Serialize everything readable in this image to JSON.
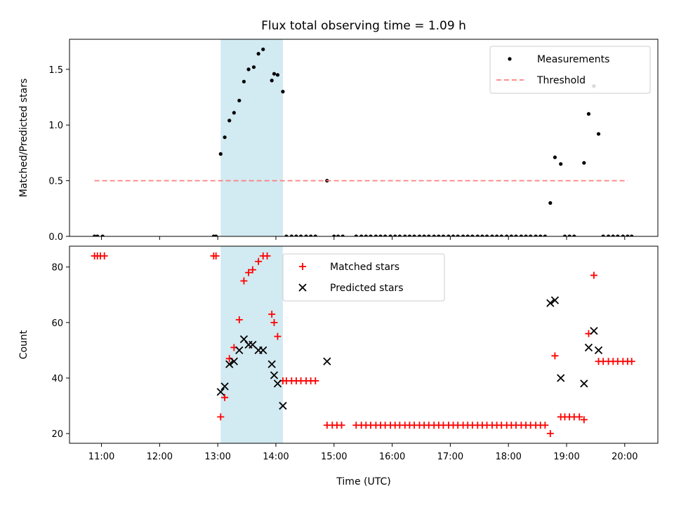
{
  "chart_data": {
    "title": "Flux total observing time = 1.09 h",
    "xlabel": "Time (UTC)",
    "x_tick_labels": [
      "11:00",
      "12:00",
      "13:00",
      "14:00",
      "15:00",
      "16:00",
      "17:00",
      "18:00",
      "19:00",
      "20:00"
    ],
    "x_ticks_hours": [
      11,
      12,
      13,
      14,
      15,
      16,
      17,
      18,
      19,
      20
    ],
    "xlim_hours": [
      10.45,
      20.57
    ],
    "shaded_span_hours": [
      13.05,
      14.12
    ],
    "shade_color": "#add8e6",
    "panels": [
      {
        "type": "scatter",
        "ylabel": "Matched/Predicted stars",
        "ylim": [
          0,
          1.77
        ],
        "y_ticks": [
          0.0,
          0.5,
          1.0,
          1.5
        ],
        "y_tick_labels": [
          "0.0",
          "0.5",
          "1.0",
          "1.5"
        ],
        "legend_position": "top-right",
        "series": [
          {
            "name": "Measurements",
            "kind": "dot",
            "color": "#000000",
            "x": [
              10.88,
              10.93,
              11.02,
              12.93,
              12.97,
              13.05,
              13.12,
              13.2,
              13.28,
              13.37,
              13.45,
              13.53,
              13.62,
              13.7,
              13.78,
              13.93,
              13.97,
              14.03,
              14.12,
              14.18,
              14.27,
              14.35,
              14.43,
              14.52,
              14.6,
              14.68,
              14.88,
              15.0,
              15.07,
              15.15,
              15.38,
              15.47,
              15.55,
              15.63,
              15.72,
              15.8,
              15.88,
              15.97,
              16.05,
              16.13,
              16.22,
              16.3,
              16.38,
              16.47,
              16.55,
              16.63,
              16.72,
              16.8,
              16.88,
              16.97,
              17.05,
              17.13,
              17.22,
              17.3,
              17.38,
              17.47,
              17.55,
              17.63,
              17.72,
              17.8,
              17.88,
              17.97,
              18.05,
              18.13,
              18.22,
              18.3,
              18.38,
              18.47,
              18.55,
              18.63,
              18.72,
              18.8,
              18.9,
              18.97,
              19.05,
              19.13,
              19.3,
              19.38,
              19.47,
              19.55,
              19.63,
              19.72,
              19.8,
              19.88,
              19.97,
              20.05,
              20.12
            ],
            "y": [
              0,
              0,
              0,
              0,
              0,
              0.74,
              0.89,
              1.04,
              1.11,
              1.22,
              1.39,
              1.5,
              1.52,
              1.64,
              1.68,
              1.4,
              1.46,
              1.45,
              1.3,
              0,
              0,
              0,
              0,
              0,
              0,
              0,
              0.5,
              0,
              0,
              0,
              0,
              0,
              0,
              0,
              0,
              0,
              0,
              0,
              0,
              0,
              0,
              0,
              0,
              0,
              0,
              0,
              0,
              0,
              0,
              0,
              0,
              0,
              0,
              0,
              0,
              0,
              0,
              0,
              0,
              0,
              0,
              0,
              0,
              0,
              0,
              0,
              0,
              0,
              0,
              0,
              0.3,
              0.71,
              0.65,
              0,
              0,
              0,
              0.66,
              1.1,
              1.35,
              0.92,
              0,
              0,
              0,
              0,
              0,
              0,
              0
            ]
          },
          {
            "name": "Threshold",
            "kind": "dashed-line",
            "color": "#ff7f7f",
            "x": [
              10.88,
              20.05
            ],
            "y": [
              0.5,
              0.5
            ]
          }
        ]
      },
      {
        "type": "scatter",
        "ylabel": "Count",
        "ylim": [
          16.5,
          87.5
        ],
        "y_ticks": [
          20,
          40,
          60,
          80
        ],
        "y_tick_labels": [
          "20",
          "40",
          "60",
          "80"
        ],
        "legend_position": "upper-center",
        "series": [
          {
            "name": "Matched stars",
            "kind": "plus",
            "color": "#ff0000",
            "x": [
              10.88,
              10.93,
              10.98,
              11.05,
              12.93,
              12.97,
              13.05,
              13.12,
              13.2,
              13.28,
              13.37,
              13.45,
              13.53,
              13.6,
              13.7,
              13.78,
              13.85,
              13.93,
              13.97,
              14.03,
              14.12,
              14.18,
              14.27,
              14.35,
              14.43,
              14.52,
              14.6,
              14.68,
              14.88,
              14.97,
              15.05,
              15.13,
              15.38,
              15.47,
              15.55,
              15.63,
              15.72,
              15.8,
              15.88,
              15.97,
              16.05,
              16.13,
              16.22,
              16.3,
              16.38,
              16.47,
              16.55,
              16.63,
              16.72,
              16.8,
              16.88,
              16.97,
              17.05,
              17.13,
              17.22,
              17.3,
              17.38,
              17.47,
              17.55,
              17.63,
              17.72,
              17.8,
              17.88,
              17.97,
              18.05,
              18.13,
              18.22,
              18.3,
              18.38,
              18.47,
              18.55,
              18.63,
              18.72,
              18.8,
              18.9,
              18.97,
              19.05,
              19.13,
              19.22,
              19.3,
              19.38,
              19.47,
              19.55,
              19.63,
              19.72,
              19.8,
              19.88,
              19.97,
              20.05,
              20.12
            ],
            "y": [
              84,
              84,
              84,
              84,
              84,
              84,
              26,
              33,
              47,
              51,
              61,
              75,
              78,
              79,
              82,
              84,
              84,
              63,
              60,
              55,
              39,
              39,
              39,
              39,
              39,
              39,
              39,
              39,
              23,
              23,
              23,
              23,
              23,
              23,
              23,
              23,
              23,
              23,
              23,
              23,
              23,
              23,
              23,
              23,
              23,
              23,
              23,
              23,
              23,
              23,
              23,
              23,
              23,
              23,
              23,
              23,
              23,
              23,
              23,
              23,
              23,
              23,
              23,
              23,
              23,
              23,
              23,
              23,
              23,
              23,
              23,
              23,
              20,
              48,
              26,
              26,
              26,
              26,
              26,
              25,
              56,
              77,
              46,
              46,
              46,
              46,
              46,
              46,
              46,
              46
            ]
          },
          {
            "name": "Predicted stars",
            "kind": "x",
            "color": "#000000",
            "x": [
              13.05,
              13.12,
              13.2,
              13.28,
              13.37,
              13.45,
              13.53,
              13.6,
              13.7,
              13.78,
              13.93,
              13.97,
              14.03,
              14.12,
              14.88,
              18.72,
              18.8,
              18.9,
              19.3,
              19.38,
              19.47,
              19.55
            ],
            "y": [
              35,
              37,
              45,
              46,
              50,
              54,
              52,
              52,
              50,
              50,
              45,
              41,
              38,
              30,
              46,
              67,
              68,
              40,
              38,
              51,
              57,
              50
            ]
          }
        ]
      }
    ]
  }
}
